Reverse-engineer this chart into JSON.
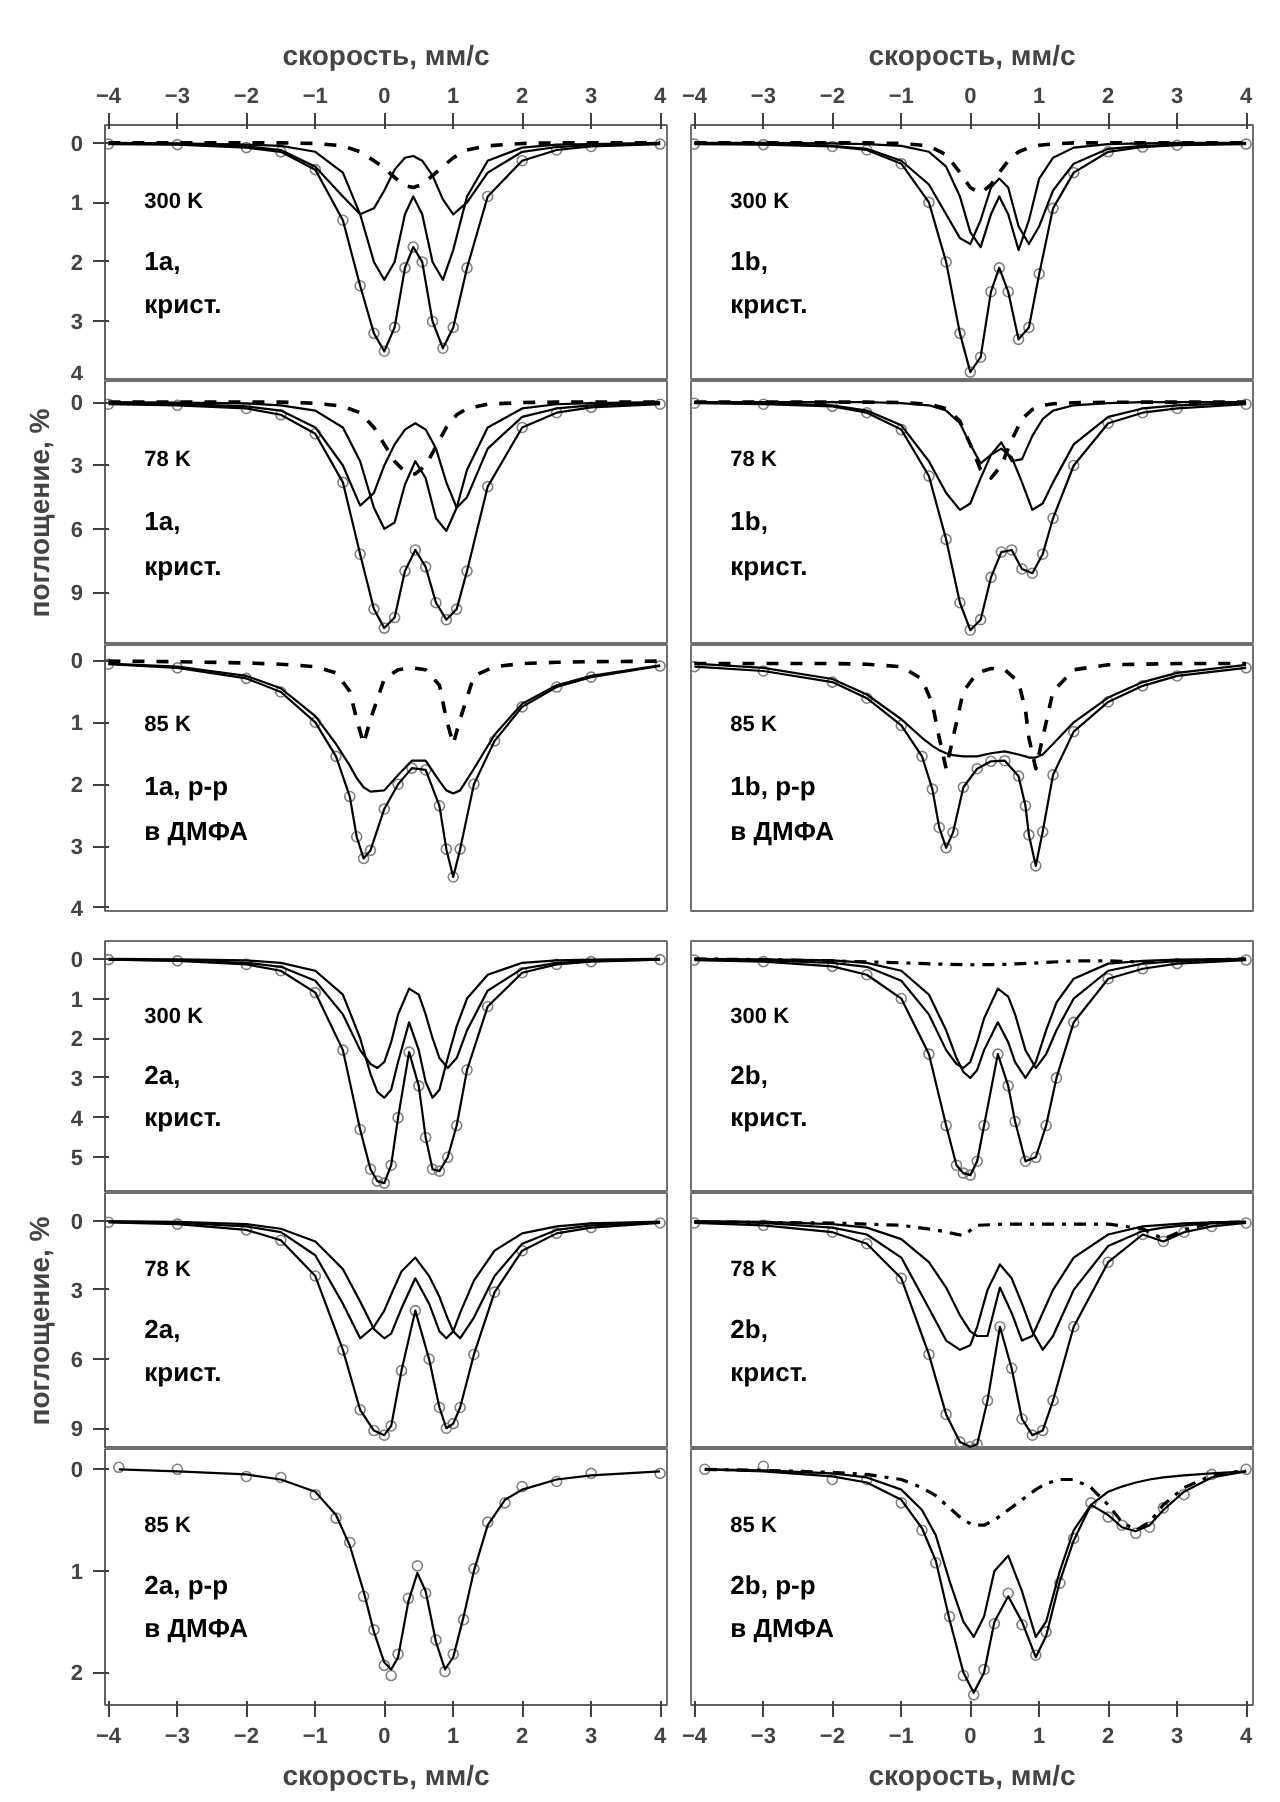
{
  "chart_data": [
    {
      "type": "line",
      "xlabel": "скорость, мм/с",
      "xlim": [
        -4.05,
        4.1
      ],
      "xticks": [
        -4,
        -3,
        -2,
        -1,
        0,
        1,
        2,
        3,
        4
      ],
      "ylim": [
        4,
        -0.3
      ],
      "yticks": [
        0,
        1,
        2,
        3,
        4
      ],
      "annotations": [
        "300 K",
        "1a,",
        "крист."
      ],
      "x": [
        -4,
        -3,
        -2,
        -1.5,
        -1,
        -0.6,
        -0.35,
        -0.15,
        0,
        0.15,
        0.3,
        0.42,
        0.55,
        0.7,
        0.85,
        1.0,
        1.2,
        1.5,
        2,
        2.5,
        3,
        4
      ],
      "series": [
        {
          "type": "scatter",
          "marker": "circle",
          "color": "#808080",
          "values": [
            0.02,
            0.03,
            0.08,
            0.15,
            0.45,
            1.3,
            2.4,
            3.2,
            3.5,
            3.1,
            2.1,
            1.75,
            2.0,
            3.0,
            3.45,
            3.1,
            2.1,
            0.9,
            0.3,
            0.12,
            0.06,
            0.02
          ]
        },
        {
          "line_style": "solid",
          "color": "#000000",
          "values": [
            0.02,
            0.03,
            0.08,
            0.15,
            0.45,
            1.3,
            2.4,
            3.2,
            3.5,
            3.1,
            2.1,
            1.75,
            2.0,
            3.0,
            3.45,
            3.1,
            2.1,
            0.9,
            0.3,
            0.12,
            0.06,
            0.02
          ]
        },
        {
          "line_style": "solid",
          "color": "#000000",
          "values": [
            0.01,
            0.02,
            0.06,
            0.12,
            0.4,
            0.9,
            1.2,
            1.1,
            0.8,
            0.45,
            0.25,
            0.22,
            0.3,
            0.55,
            0.95,
            1.2,
            1.0,
            0.5,
            0.15,
            0.07,
            0.04,
            0.01
          ]
        },
        {
          "line_style": "solid",
          "color": "#000000",
          "values": [
            0,
            0.01,
            0.03,
            0.05,
            0.15,
            0.5,
            1.2,
            2.0,
            2.3,
            2.0,
            1.2,
            0.9,
            1.2,
            2.0,
            2.3,
            1.8,
            0.9,
            0.3,
            0.08,
            0.03,
            0.02,
            0
          ]
        },
        {
          "line_style": "dashed",
          "color": "#000000",
          "values": [
            0,
            0,
            0,
            0,
            0.01,
            0.05,
            0.15,
            0.3,
            0.42,
            0.58,
            0.72,
            0.75,
            0.7,
            0.55,
            0.4,
            0.25,
            0.12,
            0.05,
            0.01,
            0,
            0,
            0
          ]
        }
      ]
    },
    {
      "type": "line",
      "xlabel": "скорость, мм/с",
      "xlim": [
        -4.05,
        4.1
      ],
      "xticks": [
        -4,
        -3,
        -2,
        -1,
        0,
        1,
        2,
        3,
        4
      ],
      "ylim": [
        4,
        -0.3
      ],
      "tick_labels": "x",
      "annotations": [
        "300 K",
        "1b,",
        "крист."
      ],
      "x": [
        -4,
        -3,
        -2,
        -1.5,
        -1,
        -0.6,
        -0.35,
        -0.15,
        0,
        0.15,
        0.3,
        0.42,
        0.55,
        0.7,
        0.85,
        1.0,
        1.2,
        1.5,
        2,
        2.5,
        3,
        4
      ],
      "series": [
        {
          "type": "scatter",
          "marker": "circle",
          "color": "#808080",
          "values": [
            0.02,
            0.03,
            0.06,
            0.12,
            0.35,
            1.0,
            2.0,
            3.2,
            3.85,
            3.6,
            2.5,
            2.1,
            2.5,
            3.3,
            3.1,
            2.2,
            1.1,
            0.5,
            0.15,
            0.07,
            0.04,
            0.02
          ]
        },
        {
          "line_style": "solid",
          "color": "#000000",
          "values": [
            0.02,
            0.03,
            0.06,
            0.12,
            0.35,
            1.0,
            2.0,
            3.2,
            3.85,
            3.6,
            2.5,
            2.1,
            2.5,
            3.3,
            3.1,
            2.2,
            1.1,
            0.5,
            0.15,
            0.07,
            0.04,
            0.02
          ]
        },
        {
          "line_style": "solid",
          "color": "#000000",
          "values": [
            0.01,
            0.02,
            0.05,
            0.1,
            0.3,
            0.7,
            1.2,
            1.6,
            1.7,
            1.3,
            0.75,
            0.6,
            0.75,
            1.4,
            1.7,
            1.4,
            0.8,
            0.35,
            0.1,
            0.05,
            0.03,
            0.01
          ]
        },
        {
          "line_style": "solid",
          "color": "#000000",
          "values": [
            0,
            0,
            0.01,
            0.02,
            0.05,
            0.15,
            0.4,
            0.9,
            1.5,
            1.75,
            1.2,
            0.9,
            1.2,
            1.8,
            1.3,
            0.6,
            0.25,
            0.08,
            0.02,
            0.01,
            0,
            0
          ]
        },
        {
          "line_style": "dashed",
          "color": "#000000",
          "values": [
            0,
            0,
            0,
            0,
            0.01,
            0.05,
            0.2,
            0.5,
            0.75,
            0.85,
            0.7,
            0.5,
            0.3,
            0.15,
            0.08,
            0.04,
            0.02,
            0,
            0,
            0,
            0,
            0
          ]
        }
      ]
    },
    {
      "type": "line",
      "ylabel": "поглощение, %",
      "xlim": [
        -4.05,
        4.1
      ],
      "ylim": [
        11.5,
        -1
      ],
      "yticks": [
        0,
        3,
        6,
        9
      ],
      "tick_labels": "y",
      "annotations": [
        "78 K",
        "1a,",
        "крист."
      ],
      "x": [
        -4,
        -3,
        -2,
        -1.5,
        -1,
        -0.6,
        -0.35,
        -0.15,
        0,
        0.15,
        0.3,
        0.45,
        0.6,
        0.75,
        0.9,
        1.05,
        1.2,
        1.5,
        2,
        2.5,
        3,
        4
      ],
      "series": [
        {
          "type": "scatter",
          "marker": "circle",
          "color": "#808080",
          "values": [
            0.1,
            0.15,
            0.3,
            0.6,
            1.5,
            3.8,
            7.2,
            9.8,
            10.7,
            10.2,
            8.0,
            7.0,
            7.8,
            9.5,
            10.3,
            9.8,
            8.0,
            4.0,
            1.2,
            0.5,
            0.25,
            0.1
          ]
        },
        {
          "line_style": "solid",
          "color": "#000000",
          "values": [
            0.1,
            0.15,
            0.3,
            0.6,
            1.5,
            3.8,
            7.2,
            9.8,
            10.7,
            10.2,
            8.0,
            7.0,
            7.8,
            9.5,
            10.3,
            9.8,
            8.0,
            4.0,
            1.2,
            0.5,
            0.25,
            0.1
          ]
        },
        {
          "line_style": "solid",
          "color": "#000000",
          "values": [
            0.05,
            0.08,
            0.2,
            0.4,
            1.2,
            3.0,
            4.9,
            4.3,
            3.0,
            2.0,
            1.3,
            1.0,
            1.3,
            2.2,
            3.8,
            5.0,
            4.5,
            2.2,
            0.7,
            0.3,
            0.15,
            0.05
          ]
        },
        {
          "line_style": "solid",
          "color": "#000000",
          "values": [
            0,
            0.02,
            0.06,
            0.15,
            0.4,
            1.2,
            2.8,
            5.0,
            6.0,
            5.7,
            3.9,
            2.8,
            3.6,
            5.5,
            6.1,
            5.0,
            3.2,
            1.2,
            0.3,
            0.1,
            0.05,
            0
          ]
        },
        {
          "line_style": "dashed",
          "color": "#000000",
          "values": [
            0,
            0,
            0,
            0,
            0.05,
            0.2,
            0.5,
            1.2,
            2.0,
            2.8,
            3.3,
            3.4,
            3.0,
            2.1,
            1.2,
            0.6,
            0.3,
            0.1,
            0.02,
            0,
            0,
            0
          ]
        }
      ]
    },
    {
      "type": "line",
      "xlim": [
        -4.05,
        4.1
      ],
      "ylim": [
        11.5,
        -1
      ],
      "tick_labels": false,
      "annotations": [
        "78 K",
        "1b,",
        "крист."
      ],
      "x": [
        -4,
        -3,
        -2,
        -1.5,
        -1,
        -0.6,
        -0.35,
        -0.15,
        0,
        0.15,
        0.3,
        0.45,
        0.6,
        0.75,
        0.9,
        1.05,
        1.2,
        1.5,
        2,
        2.5,
        3,
        4
      ],
      "series": [
        {
          "type": "scatter",
          "marker": "circle",
          "color": "#808080",
          "values": [
            0.05,
            0.1,
            0.2,
            0.5,
            1.3,
            3.5,
            6.5,
            9.5,
            10.8,
            10.3,
            8.3,
            7.1,
            7.0,
            7.9,
            8.1,
            7.2,
            5.5,
            3.0,
            1.0,
            0.5,
            0.3,
            0.1
          ]
        },
        {
          "line_style": "solid",
          "color": "#000000",
          "values": [
            0.05,
            0.1,
            0.2,
            0.5,
            1.3,
            3.5,
            6.5,
            9.5,
            10.8,
            10.3,
            8.3,
            7.1,
            7.0,
            7.9,
            8.1,
            7.2,
            5.5,
            3.0,
            1.0,
            0.5,
            0.3,
            0.1
          ]
        },
        {
          "line_style": "solid",
          "color": "#000000",
          "values": [
            0.02,
            0.05,
            0.15,
            0.4,
            1.1,
            2.8,
            4.3,
            5.1,
            4.8,
            3.6,
            2.5,
            2.2,
            2.6,
            3.8,
            5.1,
            4.8,
            3.8,
            2.0,
            0.7,
            0.3,
            0.15,
            0.05
          ]
        },
        {
          "line_style": "solid",
          "color": "#000000",
          "values": [
            0,
            0,
            0,
            0,
            0.05,
            0.15,
            0.4,
            1.0,
            2.0,
            2.9,
            2.5,
            1.9,
            2.8,
            2.7,
            1.6,
            0.8,
            0.4,
            0.15,
            0.05,
            0,
            0,
            0
          ]
        },
        {
          "line_style": "dashed",
          "color": "#000000",
          "values": [
            0,
            0,
            0,
            0,
            0.02,
            0.1,
            0.3,
            0.9,
            2.0,
            3.2,
            3.6,
            3.0,
            1.8,
            0.8,
            0.35,
            0.15,
            0.08,
            0.03,
            0.01,
            0,
            0,
            0
          ]
        }
      ]
    },
    {
      "type": "line",
      "xlim": [
        -4.05,
        4.1
      ],
      "ylim": [
        4.05,
        -0.25
      ],
      "yticks": [
        0,
        1,
        2,
        3,
        4
      ],
      "tick_labels": "y",
      "annotations": [
        "85 K",
        "1a, р-р",
        "в ДМФА"
      ],
      "x": [
        -4,
        -3,
        -2,
        -1.5,
        -1,
        -0.7,
        -0.5,
        -0.4,
        -0.3,
        -0.2,
        0,
        0.2,
        0.4,
        0.6,
        0.8,
        0.9,
        1.0,
        1.1,
        1.3,
        1.6,
        2,
        2.5,
        3,
        4
      ],
      "series": [
        {
          "type": "scatter",
          "marker": "circle",
          "color": "#808080",
          "values": [
            0.06,
            0.12,
            0.29,
            0.51,
            1.0,
            1.55,
            2.2,
            2.85,
            3.2,
            3.07,
            2.4,
            2.0,
            1.74,
            1.77,
            2.35,
            3.05,
            3.5,
            3.05,
            2.0,
            1.3,
            0.75,
            0.43,
            0.27,
            0.09
          ]
        },
        {
          "line_style": "solid",
          "color": "#000000",
          "values": [
            0.06,
            0.12,
            0.29,
            0.51,
            1.0,
            1.55,
            2.2,
            2.85,
            3.2,
            3.07,
            2.4,
            2.0,
            1.74,
            1.77,
            2.35,
            3.05,
            3.5,
            3.05,
            2.0,
            1.3,
            0.75,
            0.43,
            0.27,
            0.09
          ]
        },
        {
          "line_style": "solid",
          "color": "#000000",
          "values": [
            0.05,
            0.1,
            0.25,
            0.45,
            0.9,
            1.35,
            1.7,
            1.9,
            2.05,
            2.12,
            2.1,
            1.85,
            1.62,
            1.62,
            1.95,
            2.1,
            2.15,
            2.1,
            1.75,
            1.2,
            0.7,
            0.4,
            0.25,
            0.08
          ]
        },
        {
          "line_style": "dashed",
          "color": "#000000",
          "values": [
            0.01,
            0.02,
            0.04,
            0.06,
            0.1,
            0.2,
            0.5,
            0.95,
            1.35,
            0.95,
            0.3,
            0.15,
            0.12,
            0.15,
            0.4,
            0.95,
            1.35,
            0.95,
            0.25,
            0.1,
            0.05,
            0.03,
            0.02,
            0.01
          ]
        }
      ]
    },
    {
      "type": "line",
      "xlim": [
        -4.05,
        4.1
      ],
      "ylim": [
        4.05,
        -0.25
      ],
      "tick_labels": false,
      "annotations": [
        "85 K",
        "1b, р-р",
        "в ДМФА"
      ],
      "x": [
        -4,
        -3,
        -2,
        -1.5,
        -1,
        -0.7,
        -0.55,
        -0.45,
        -0.35,
        -0.25,
        -0.1,
        0.1,
        0.3,
        0.5,
        0.7,
        0.8,
        0.85,
        0.95,
        1.05,
        1.2,
        1.5,
        2,
        2.5,
        3,
        4
      ],
      "series": [
        {
          "type": "scatter",
          "marker": "circle",
          "color": "#808080",
          "values": [
            0.1,
            0.17,
            0.35,
            0.61,
            1.05,
            1.55,
            2.08,
            2.7,
            3.03,
            2.78,
            2.05,
            1.75,
            1.63,
            1.62,
            1.87,
            2.35,
            2.82,
            3.32,
            2.77,
            1.85,
            1.15,
            0.67,
            0.41,
            0.25,
            0.12
          ]
        },
        {
          "line_style": "solid",
          "color": "#000000",
          "values": [
            0.1,
            0.17,
            0.35,
            0.61,
            1.05,
            1.55,
            2.08,
            2.7,
            3.03,
            2.78,
            2.05,
            1.75,
            1.63,
            1.62,
            1.87,
            2.35,
            2.82,
            3.32,
            2.77,
            1.85,
            1.15,
            0.67,
            0.41,
            0.25,
            0.12
          ]
        },
        {
          "line_style": "solid",
          "color": "#000000",
          "values": [
            0.05,
            0.12,
            0.3,
            0.55,
            0.95,
            1.25,
            1.38,
            1.45,
            1.5,
            1.53,
            1.55,
            1.55,
            1.5,
            1.47,
            1.52,
            1.55,
            1.57,
            1.57,
            1.52,
            1.35,
            1.0,
            0.6,
            0.35,
            0.2,
            0.07
          ]
        },
        {
          "line_style": "dashed",
          "color": "#000000",
          "values": [
            0.05,
            0.05,
            0.05,
            0.06,
            0.1,
            0.3,
            0.7,
            1.25,
            1.75,
            1.25,
            0.5,
            0.2,
            0.13,
            0.15,
            0.35,
            0.8,
            1.25,
            1.75,
            1.25,
            0.5,
            0.15,
            0.07,
            0.06,
            0.05,
            0.05
          ]
        }
      ]
    },
    {
      "type": "line",
      "xlim": [
        -4.05,
        4.1
      ],
      "ylim": [
        5.9,
        -0.45
      ],
      "yticks": [
        0,
        1,
        2,
        3,
        4,
        5
      ],
      "tick_labels": "y",
      "annotations": [
        "300 K",
        "2a,",
        "крист."
      ],
      "x": [
        -4,
        -3,
        -2,
        -1.5,
        -1,
        -0.6,
        -0.35,
        -0.2,
        -0.1,
        0,
        0.1,
        0.2,
        0.36,
        0.5,
        0.6,
        0.7,
        0.8,
        0.92,
        1.05,
        1.2,
        1.5,
        2,
        2.5,
        3,
        4
      ],
      "series": [
        {
          "type": "scatter",
          "marker": "circle",
          "color": "#808080",
          "values": [
            0.02,
            0.05,
            0.14,
            0.3,
            0.85,
            2.3,
            4.3,
            5.3,
            5.6,
            5.65,
            5.2,
            4.0,
            2.35,
            3.2,
            4.5,
            5.3,
            5.35,
            5.0,
            4.2,
            2.8,
            1.2,
            0.35,
            0.14,
            0.07,
            0.02
          ]
        },
        {
          "line_style": "solid",
          "color": "#000000",
          "values": [
            0.02,
            0.05,
            0.14,
            0.3,
            0.85,
            2.3,
            4.3,
            5.3,
            5.6,
            5.65,
            5.2,
            4.0,
            2.35,
            3.2,
            4.5,
            5.3,
            5.35,
            5.0,
            4.2,
            2.8,
            1.2,
            0.35,
            0.14,
            0.07,
            0.02
          ]
        },
        {
          "line_style": "solid",
          "color": "#000000",
          "values": [
            0.02,
            0.04,
            0.1,
            0.2,
            0.55,
            1.4,
            2.3,
            2.65,
            2.75,
            2.6,
            2.1,
            1.4,
            0.75,
            0.9,
            1.4,
            2.0,
            2.5,
            2.75,
            2.5,
            1.8,
            0.8,
            0.25,
            0.1,
            0.05,
            0.02
          ]
        },
        {
          "line_style": "solid",
          "color": "#000000",
          "values": [
            0,
            0.01,
            0.04,
            0.1,
            0.3,
            0.9,
            2.0,
            2.9,
            3.35,
            3.5,
            3.3,
            2.6,
            1.6,
            2.3,
            3.1,
            3.5,
            3.3,
            2.5,
            1.7,
            1.0,
            0.4,
            0.1,
            0.04,
            0.02,
            0
          ]
        }
      ]
    },
    {
      "type": "line",
      "xlim": [
        -4.05,
        4.1
      ],
      "ylim": [
        5.9,
        -0.45
      ],
      "tick_labels": false,
      "annotations": [
        "300 K",
        "2b,",
        "крист."
      ],
      "x": [
        -4,
        -3,
        -2,
        -1.5,
        -1,
        -0.6,
        -0.35,
        -0.2,
        -0.1,
        0,
        0.1,
        0.2,
        0.4,
        0.55,
        0.65,
        0.8,
        0.95,
        1.1,
        1.25,
        1.5,
        2,
        2.5,
        3,
        4
      ],
      "series": [
        {
          "type": "scatter",
          "marker": "circle",
          "color": "#808080",
          "values": [
            0.03,
            0.07,
            0.19,
            0.4,
            1.0,
            2.4,
            4.2,
            5.2,
            5.4,
            5.45,
            5.1,
            4.2,
            2.4,
            3.2,
            4.1,
            5.1,
            5.0,
            4.2,
            3.0,
            1.6,
            0.5,
            0.25,
            0.12,
            0.03
          ]
        },
        {
          "line_style": "solid",
          "color": "#000000",
          "values": [
            0.03,
            0.07,
            0.19,
            0.4,
            1.0,
            2.4,
            4.2,
            5.2,
            5.4,
            5.45,
            5.1,
            4.2,
            2.4,
            3.2,
            4.1,
            5.1,
            5.0,
            4.2,
            3.0,
            1.6,
            0.5,
            0.25,
            0.12,
            0.03
          ]
        },
        {
          "line_style": "solid",
          "color": "#000000",
          "values": [
            0.02,
            0.04,
            0.1,
            0.2,
            0.55,
            1.4,
            2.3,
            2.65,
            2.75,
            2.6,
            2.1,
            1.5,
            0.75,
            0.95,
            1.4,
            2.3,
            2.75,
            2.4,
            1.8,
            1.0,
            0.3,
            0.12,
            0.06,
            0.02
          ]
        },
        {
          "line_style": "solid",
          "color": "#000000",
          "values": [
            0,
            0.01,
            0.04,
            0.1,
            0.3,
            0.9,
            1.8,
            2.5,
            2.85,
            3.0,
            2.8,
            2.3,
            1.6,
            2.1,
            2.6,
            3.0,
            2.6,
            1.8,
            1.1,
            0.5,
            0.12,
            0.05,
            0.02,
            0
          ]
        },
        {
          "line_style": "dashdot",
          "color": "#000000",
          "x": [
            -4,
            -3,
            -2,
            -1,
            -0.5,
            0,
            0.5,
            1,
            1.5,
            2,
            2.5,
            3,
            4
          ],
          "values": [
            0,
            0.02,
            0.05,
            0.1,
            0.13,
            0.15,
            0.14,
            0.1,
            0.05,
            0.05,
            0.08,
            0.05,
            0
          ]
        }
      ]
    },
    {
      "type": "line",
      "ylabel": "поглощение, %",
      "xlim": [
        -4.05,
        4.1
      ],
      "ylim": [
        9.9,
        -1.2
      ],
      "yticks": [
        0,
        3,
        6,
        9
      ],
      "tick_labels": "y",
      "annotations": [
        "78 K",
        "2a,",
        "крист."
      ],
      "x": [
        -4,
        -3,
        -2,
        -1.5,
        -1,
        -0.6,
        -0.35,
        -0.15,
        0,
        0.1,
        0.25,
        0.45,
        0.65,
        0.8,
        0.9,
        1.0,
        1.1,
        1.3,
        1.6,
        2,
        2.5,
        3,
        4
      ],
      "series": [
        {
          "type": "scatter",
          "marker": "circle",
          "color": "#808080",
          "values": [
            0.07,
            0.15,
            0.4,
            0.85,
            2.4,
            5.6,
            8.2,
            9.1,
            9.3,
            8.9,
            6.5,
            3.9,
            6.0,
            8.1,
            9.0,
            8.8,
            8.1,
            5.8,
            3.1,
            1.3,
            0.55,
            0.3,
            0.1
          ]
        },
        {
          "line_style": "solid",
          "color": "#000000",
          "values": [
            0.07,
            0.15,
            0.4,
            0.85,
            2.4,
            5.6,
            8.2,
            9.1,
            9.3,
            8.9,
            6.5,
            3.9,
            6.0,
            8.1,
            9.0,
            8.8,
            8.1,
            5.8,
            3.1,
            1.3,
            0.55,
            0.3,
            0.1
          ]
        },
        {
          "line_style": "solid",
          "color": "#000000",
          "values": [
            0.05,
            0.1,
            0.25,
            0.5,
            1.5,
            3.6,
            5.1,
            4.6,
            3.9,
            3.2,
            2.2,
            1.6,
            2.4,
            3.3,
            4.1,
            4.8,
            5.1,
            4.2,
            2.4,
            1.0,
            0.4,
            0.2,
            0.07
          ]
        },
        {
          "line_style": "solid",
          "color": "#000000",
          "values": [
            0.02,
            0.05,
            0.15,
            0.35,
            0.9,
            2.1,
            3.5,
            4.7,
            5.1,
            4.9,
            3.8,
            2.5,
            3.6,
            4.8,
            5.1,
            4.8,
            4.0,
            2.6,
            1.3,
            0.55,
            0.25,
            0.12,
            0.04
          ]
        }
      ]
    },
    {
      "type": "line",
      "xlim": [
        -4.05,
        4.1
      ],
      "ylim": [
        9.9,
        -1.2
      ],
      "tick_labels": false,
      "annotations": [
        "78 K",
        "2b,",
        "крист."
      ],
      "x": [
        -4,
        -3,
        -2,
        -1.5,
        -1,
        -0.6,
        -0.35,
        -0.15,
        0,
        0.1,
        0.25,
        0.43,
        0.6,
        0.75,
        0.9,
        1.05,
        1.2,
        1.5,
        2,
        2.5,
        2.8,
        3.1,
        3.5,
        4
      ],
      "series": [
        {
          "type": "scatter",
          "marker": "circle",
          "color": "#808080",
          "values": [
            0.1,
            0.2,
            0.5,
            1.0,
            2.5,
            5.8,
            8.4,
            9.6,
            9.8,
            9.7,
            7.8,
            4.6,
            6.4,
            8.6,
            9.3,
            9.1,
            7.8,
            4.6,
            1.8,
            0.6,
            0.9,
            0.5,
            0.25,
            0.1
          ]
        },
        {
          "line_style": "solid",
          "color": "#000000",
          "values": [
            0.1,
            0.2,
            0.5,
            1.0,
            2.5,
            5.8,
            8.4,
            9.6,
            9.8,
            9.7,
            7.8,
            4.6,
            6.4,
            8.6,
            9.3,
            9.1,
            7.8,
            4.6,
            1.8,
            0.6,
            0.9,
            0.5,
            0.25,
            0.1
          ]
        },
        {
          "line_style": "solid",
          "color": "#000000",
          "values": [
            0.05,
            0.1,
            0.3,
            0.6,
            1.6,
            3.8,
            5.2,
            5.6,
            5.4,
            4.6,
            3.0,
            1.9,
            2.5,
            3.6,
            4.8,
            5.6,
            5.0,
            3.0,
            1.1,
            0.45,
            0.3,
            0.2,
            0.12,
            0.07
          ]
        },
        {
          "line_style": "solid",
          "color": "#000000",
          "values": [
            0.02,
            0.05,
            0.15,
            0.3,
            0.8,
            1.8,
            2.9,
            4.1,
            4.8,
            5.0,
            5.0,
            2.9,
            4.0,
            5.2,
            5.0,
            4.0,
            3.0,
            1.6,
            0.6,
            0.25,
            0.18,
            0.12,
            0.07,
            0.04
          ]
        },
        {
          "line_style": "dashdot",
          "color": "#000000",
          "x": [
            -4,
            -2,
            -1,
            -0.5,
            -0.1,
            0.1,
            0.5,
            1,
            1.5,
            2,
            2.5,
            2.8,
            3.1,
            3.5,
            4
          ],
          "values": [
            0.05,
            0.1,
            0.2,
            0.4,
            0.65,
            0.2,
            0.15,
            0.15,
            0.15,
            0.15,
            0.35,
            0.8,
            0.4,
            0.1,
            0.05
          ]
        }
      ]
    },
    {
      "type": "line",
      "xlabel": "скорость, мм/с",
      "xlim": [
        -4.05,
        4.1
      ],
      "xticks": [
        -4,
        -3,
        -2,
        -1,
        0,
        1,
        2,
        3,
        4
      ],
      "ylim": [
        2.32,
        -0.2
      ],
      "yticks": [
        0,
        1,
        2
      ],
      "annotations": [
        "85 K",
        "2a, р-р",
        "в ДМФА"
      ],
      "x": [
        -3.85,
        -3,
        -2,
        -1.5,
        -1,
        -0.7,
        -0.5,
        -0.3,
        -0.15,
        0,
        0.1,
        0.2,
        0.35,
        0.48,
        0.6,
        0.75,
        0.88,
        1.0,
        1.15,
        1.3,
        1.5,
        1.75,
        2,
        2.5,
        3,
        4
      ],
      "series": [
        {
          "type": "scatter",
          "marker": "circle",
          "color": "#808080",
          "values": [
            -0.02,
            0.0,
            0.07,
            0.08,
            0.25,
            0.48,
            0.72,
            1.25,
            1.58,
            1.93,
            2.03,
            1.82,
            1.27,
            0.95,
            1.22,
            1.68,
            1.99,
            1.82,
            1.48,
            0.98,
            0.52,
            0.33,
            0.17,
            0.12,
            0.04,
            0.04
          ]
        },
        {
          "line_style": "solid",
          "color": "#000000",
          "values": [
            0.0,
            0.02,
            0.05,
            0.1,
            0.22,
            0.45,
            0.75,
            1.2,
            1.6,
            1.9,
            1.97,
            1.85,
            1.3,
            1.02,
            1.2,
            1.7,
            1.97,
            1.85,
            1.45,
            1.0,
            0.55,
            0.3,
            0.2,
            0.1,
            0.06,
            0.02
          ]
        }
      ]
    },
    {
      "type": "line",
      "xlabel": "скорость, мм/с",
      "xlim": [
        -4.05,
        4.1
      ],
      "xticks": [
        -4,
        -3,
        -2,
        -1,
        0,
        1,
        2,
        3,
        4
      ],
      "ylim": [
        2.32,
        -0.2
      ],
      "tick_labels": "x",
      "annotations": [
        "85 K",
        "2b, р-р",
        "в ДМФА"
      ],
      "x": [
        -3.85,
        -3,
        -2,
        -1.5,
        -1,
        -0.7,
        -0.5,
        -0.3,
        -0.1,
        0.05,
        0.2,
        0.35,
        0.55,
        0.75,
        0.95,
        1.1,
        1.3,
        1.5,
        1.75,
        2,
        2.2,
        2.4,
        2.6,
        2.8,
        3.1,
        3.5,
        4
      ],
      "series": [
        {
          "type": "scatter",
          "marker": "circle",
          "color": "#808080",
          "values": [
            0.0,
            -0.03,
            0.1,
            0.1,
            0.33,
            0.6,
            0.92,
            1.45,
            2.03,
            2.22,
            1.97,
            1.52,
            1.22,
            1.53,
            1.83,
            1.6,
            1.12,
            0.68,
            0.33,
            0.47,
            0.55,
            0.63,
            0.57,
            0.38,
            0.25,
            0.05,
            0.0
          ]
        },
        {
          "line_style": "solid",
          "color": "#000000",
          "values": [
            0.0,
            0.02,
            0.07,
            0.13,
            0.3,
            0.58,
            0.9,
            1.48,
            2.0,
            2.2,
            2.0,
            1.5,
            1.25,
            1.5,
            1.85,
            1.64,
            1.1,
            0.7,
            0.35,
            0.45,
            0.57,
            0.61,
            0.55,
            0.4,
            0.22,
            0.08,
            0.02
          ]
        },
        {
          "line_style": "solid",
          "color": "#000000",
          "values": [
            0.0,
            0.01,
            0.04,
            0.08,
            0.2,
            0.4,
            0.65,
            1.1,
            1.5,
            1.65,
            1.45,
            1.0,
            0.85,
            1.2,
            1.65,
            1.5,
            1.0,
            0.6,
            0.35,
            0.22,
            0.17,
            0.13,
            0.1,
            0.08,
            0.06,
            0.04,
            0.02
          ]
        },
        {
          "line_style": "dashdot",
          "color": "#000000",
          "values": [
            0.0,
            0.01,
            0.03,
            0.05,
            0.1,
            0.18,
            0.26,
            0.38,
            0.5,
            0.55,
            0.55,
            0.5,
            0.4,
            0.3,
            0.2,
            0.14,
            0.1,
            0.1,
            0.18,
            0.35,
            0.52,
            0.6,
            0.52,
            0.35,
            0.18,
            0.06,
            0.01
          ]
        }
      ]
    }
  ]
}
